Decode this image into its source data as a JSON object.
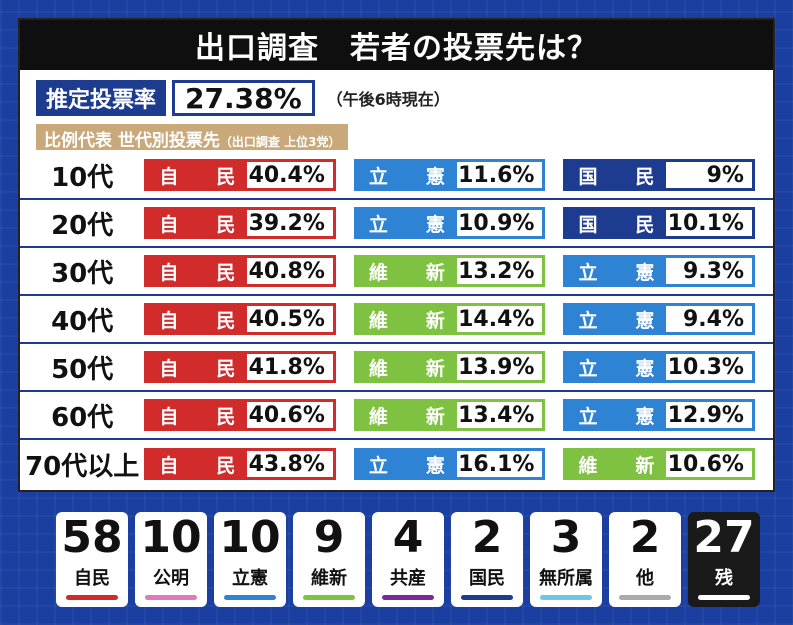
{
  "title": "出口調査　若者の投票先は？",
  "turnout": {
    "label": "推定投票率",
    "value": "27.38%",
    "note": "（午後6時現在）"
  },
  "breakdown": {
    "title": "比例代表 世代別投票先",
    "subtitle": "（出口調査 上位3党）"
  },
  "rows": [
    {
      "age": "10代",
      "parties": [
        {
          "p1": "自",
          "p2": "民",
          "pct": "40.4%",
          "color": "#d12b2b"
        },
        {
          "p1": "立",
          "p2": "憲",
          "pct": "11.6%",
          "color": "#2f83d4"
        },
        {
          "p1": "国",
          "p2": "民",
          "pct": "9%",
          "color": "#1d3c8f"
        }
      ]
    },
    {
      "age": "20代",
      "parties": [
        {
          "p1": "自",
          "p2": "民",
          "pct": "39.2%",
          "color": "#d12b2b"
        },
        {
          "p1": "立",
          "p2": "憲",
          "pct": "10.9%",
          "color": "#2f83d4"
        },
        {
          "p1": "国",
          "p2": "民",
          "pct": "10.1%",
          "color": "#1d3c8f"
        }
      ]
    },
    {
      "age": "30代",
      "parties": [
        {
          "p1": "自",
          "p2": "民",
          "pct": "40.8%",
          "color": "#d12b2b"
        },
        {
          "p1": "維",
          "p2": "新",
          "pct": "13.2%",
          "color": "#7fc241"
        },
        {
          "p1": "立",
          "p2": "憲",
          "pct": "9.3%",
          "color": "#2f83d4"
        }
      ]
    },
    {
      "age": "40代",
      "parties": [
        {
          "p1": "自",
          "p2": "民",
          "pct": "40.5%",
          "color": "#d12b2b"
        },
        {
          "p1": "維",
          "p2": "新",
          "pct": "14.4%",
          "color": "#7fc241"
        },
        {
          "p1": "立",
          "p2": "憲",
          "pct": "9.4%",
          "color": "#2f83d4"
        }
      ]
    },
    {
      "age": "50代",
      "parties": [
        {
          "p1": "自",
          "p2": "民",
          "pct": "41.8%",
          "color": "#d12b2b"
        },
        {
          "p1": "維",
          "p2": "新",
          "pct": "13.9%",
          "color": "#7fc241"
        },
        {
          "p1": "立",
          "p2": "憲",
          "pct": "10.3%",
          "color": "#2f83d4"
        }
      ]
    },
    {
      "age": "60代",
      "parties": [
        {
          "p1": "自",
          "p2": "民",
          "pct": "40.6%",
          "color": "#d12b2b"
        },
        {
          "p1": "維",
          "p2": "新",
          "pct": "13.4%",
          "color": "#7fc241"
        },
        {
          "p1": "立",
          "p2": "憲",
          "pct": "12.9%",
          "color": "#2f83d4"
        }
      ]
    },
    {
      "age": "70代以上",
      "parties": [
        {
          "p1": "自",
          "p2": "民",
          "pct": "43.8%",
          "color": "#d12b2b"
        },
        {
          "p1": "立",
          "p2": "憲",
          "pct": "16.1%",
          "color": "#2f83d4"
        },
        {
          "p1": "維",
          "p2": "新",
          "pct": "10.6%",
          "color": "#7fc241"
        }
      ]
    }
  ],
  "seats": [
    {
      "num": "58",
      "name": "自民",
      "color": "#d12b2b"
    },
    {
      "num": "10",
      "name": "公明",
      "color": "#e07ab8"
    },
    {
      "num": "10",
      "name": "立憲",
      "color": "#2f83d4"
    },
    {
      "num": "9",
      "name": "維新",
      "color": "#7fc241"
    },
    {
      "num": "4",
      "name": "共産",
      "color": "#7a2a9a"
    },
    {
      "num": "2",
      "name": "国民",
      "color": "#1d3c8f"
    },
    {
      "num": "3",
      "name": "無所属",
      "color": "#6fc7e8"
    },
    {
      "num": "2",
      "name": "他",
      "color": "#aaaaaa"
    },
    {
      "num": "27",
      "name": "残",
      "color": "#ffffff"
    }
  ]
}
